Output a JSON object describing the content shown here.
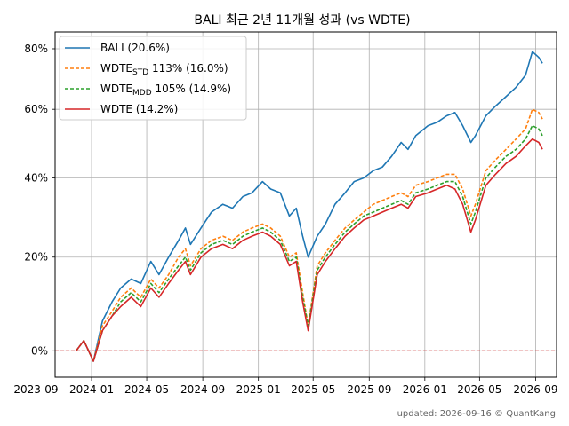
{
  "chart_data": {
    "type": "line",
    "title": "BALI 최근 2년 11개월 성과 (vs WDTE)",
    "footer": "updated: 2026-09-16 © QuantKang",
    "y_scale": "log(1+r)",
    "ylim": [
      -0.05,
      0.86
    ],
    "xlim": [
      "2023-10-13",
      "2026-10-17"
    ],
    "grid": true,
    "legend_position": "top-left",
    "baseline": {
      "value": 0,
      "color": "#d62728",
      "style": "dashed"
    },
    "x_ticks": [
      "2023-09",
      "2024-01",
      "2024-05",
      "2024-09",
      "2025-01",
      "2025-05",
      "2025-09",
      "2026-01",
      "2026-05",
      "2026-09"
    ],
    "y_ticks": [
      {
        "value": 0,
        "label": "0%"
      },
      {
        "value": 0.2,
        "label": "20%"
      },
      {
        "value": 0.4,
        "label": "40%"
      },
      {
        "value": 0.6,
        "label": "60%"
      },
      {
        "value": 0.8,
        "label": "80%"
      }
    ],
    "series": [
      {
        "name": "BALI (20.6%)",
        "label_main": "BALI (20.6%)",
        "label_sub": "",
        "label_rest": "",
        "color": "#1f77b4",
        "dash": "",
        "x": [
          "2023-11-28",
          "2023-12-15",
          "2024-01-05",
          "2024-01-25",
          "2024-02-15",
          "2024-03-05",
          "2024-03-28",
          "2024-04-18",
          "2024-05-10",
          "2024-05-28",
          "2024-06-18",
          "2024-07-10",
          "2024-07-25",
          "2024-08-05",
          "2024-08-28",
          "2024-09-20",
          "2024-10-15",
          "2024-11-05",
          "2024-11-28",
          "2024-12-18",
          "2025-01-10",
          "2025-01-28",
          "2025-02-18",
          "2025-03-10",
          "2025-03-25",
          "2025-04-08",
          "2025-04-20",
          "2025-05-10",
          "2025-05-28",
          "2025-06-18",
          "2025-07-10",
          "2025-07-30",
          "2025-08-20",
          "2025-09-10",
          "2025-09-30",
          "2025-10-20",
          "2025-11-10",
          "2025-11-25",
          "2025-12-12",
          "2026-01-08",
          "2026-01-28",
          "2026-02-18",
          "2026-03-08",
          "2026-03-25",
          "2026-04-12",
          "2026-04-22",
          "2026-05-15",
          "2026-06-05",
          "2026-06-28",
          "2026-07-20",
          "2026-08-10",
          "2026-08-25",
          "2026-09-08",
          "2026-09-16"
        ],
        "y": [
          0,
          0.02,
          -0.02,
          0.06,
          0.1,
          0.13,
          0.15,
          0.14,
          0.19,
          0.16,
          0.2,
          0.24,
          0.27,
          0.23,
          0.27,
          0.31,
          0.33,
          0.32,
          0.35,
          0.36,
          0.39,
          0.37,
          0.36,
          0.3,
          0.32,
          0.25,
          0.2,
          0.25,
          0.28,
          0.33,
          0.36,
          0.39,
          0.4,
          0.42,
          0.43,
          0.46,
          0.5,
          0.48,
          0.52,
          0.55,
          0.56,
          0.58,
          0.59,
          0.55,
          0.5,
          0.52,
          0.58,
          0.61,
          0.64,
          0.67,
          0.71,
          0.79,
          0.77,
          0.75
        ]
      },
      {
        "name": "WDTE_STD 113% (16.0%)",
        "label_main": "WDTE",
        "label_sub": "STD",
        "label_rest": " 113% (16.0%)",
        "color": "#ff7f0e",
        "dash": "4,2",
        "x": [
          "2023-11-28",
          "2023-12-15",
          "2024-01-05",
          "2024-01-25",
          "2024-02-15",
          "2024-03-05",
          "2024-03-28",
          "2024-04-18",
          "2024-05-10",
          "2024-05-28",
          "2024-06-18",
          "2024-07-10",
          "2024-07-25",
          "2024-08-05",
          "2024-08-28",
          "2024-09-20",
          "2024-10-15",
          "2024-11-05",
          "2024-11-28",
          "2024-12-18",
          "2025-01-10",
          "2025-01-28",
          "2025-02-18",
          "2025-03-10",
          "2025-03-25",
          "2025-04-08",
          "2025-04-20",
          "2025-05-10",
          "2025-05-28",
          "2025-06-18",
          "2025-07-10",
          "2025-07-30",
          "2025-08-20",
          "2025-09-10",
          "2025-09-30",
          "2025-10-20",
          "2025-11-10",
          "2025-11-25",
          "2025-12-12",
          "2026-01-08",
          "2026-01-28",
          "2026-02-18",
          "2026-03-08",
          "2026-03-25",
          "2026-04-12",
          "2026-04-22",
          "2026-05-15",
          "2026-06-05",
          "2026-06-28",
          "2026-07-20",
          "2026-08-10",
          "2026-08-25",
          "2026-09-08",
          "2026-09-16"
        ],
        "y": [
          0,
          0.02,
          -0.02,
          0.05,
          0.08,
          0.11,
          0.13,
          0.11,
          0.15,
          0.13,
          0.16,
          0.2,
          0.22,
          0.18,
          0.22,
          0.24,
          0.25,
          0.24,
          0.26,
          0.27,
          0.28,
          0.27,
          0.25,
          0.2,
          0.21,
          0.12,
          0.05,
          0.18,
          0.21,
          0.24,
          0.27,
          0.29,
          0.31,
          0.33,
          0.34,
          0.35,
          0.36,
          0.35,
          0.38,
          0.39,
          0.4,
          0.41,
          0.41,
          0.37,
          0.3,
          0.33,
          0.42,
          0.45,
          0.48,
          0.51,
          0.54,
          0.6,
          0.59,
          0.57
        ]
      },
      {
        "name": "WDTE_MDD 105% (14.9%)",
        "label_main": "WDTE",
        "label_sub": "MDD",
        "label_rest": " 105% (14.9%)",
        "color": "#2ca02c",
        "dash": "4,2",
        "x": [
          "2023-11-28",
          "2023-12-15",
          "2024-01-05",
          "2024-01-25",
          "2024-02-15",
          "2024-03-05",
          "2024-03-28",
          "2024-04-18",
          "2024-05-10",
          "2024-05-28",
          "2024-06-18",
          "2024-07-10",
          "2024-07-25",
          "2024-08-05",
          "2024-08-28",
          "2024-09-20",
          "2024-10-15",
          "2024-11-05",
          "2024-11-28",
          "2024-12-18",
          "2025-01-10",
          "2025-01-28",
          "2025-02-18",
          "2025-03-10",
          "2025-03-25",
          "2025-04-08",
          "2025-04-20",
          "2025-05-10",
          "2025-05-28",
          "2025-06-18",
          "2025-07-10",
          "2025-07-30",
          "2025-08-20",
          "2025-09-10",
          "2025-09-30",
          "2025-10-20",
          "2025-11-10",
          "2025-11-25",
          "2025-12-12",
          "2026-01-08",
          "2026-01-28",
          "2026-02-18",
          "2026-03-08",
          "2026-03-25",
          "2026-04-12",
          "2026-04-22",
          "2026-05-15",
          "2026-06-05",
          "2026-06-28",
          "2026-07-20",
          "2026-08-10",
          "2026-08-25",
          "2026-09-08",
          "2026-09-16"
        ],
        "y": [
          0,
          0.02,
          -0.02,
          0.04,
          0.07,
          0.1,
          0.12,
          0.1,
          0.14,
          0.12,
          0.15,
          0.18,
          0.2,
          0.17,
          0.21,
          0.23,
          0.24,
          0.23,
          0.25,
          0.26,
          0.27,
          0.26,
          0.24,
          0.19,
          0.2,
          0.11,
          0.05,
          0.17,
          0.2,
          0.23,
          0.26,
          0.28,
          0.3,
          0.31,
          0.32,
          0.33,
          0.34,
          0.33,
          0.36,
          0.37,
          0.38,
          0.39,
          0.39,
          0.35,
          0.28,
          0.31,
          0.4,
          0.43,
          0.46,
          0.48,
          0.51,
          0.55,
          0.54,
          0.52
        ]
      },
      {
        "name": "WDTE (14.2%)",
        "label_main": "WDTE (14.2%)",
        "label_sub": "",
        "label_rest": "",
        "color": "#d62728",
        "dash": "",
        "x": [
          "2023-11-28",
          "2023-12-15",
          "2024-01-05",
          "2024-01-25",
          "2024-02-15",
          "2024-03-05",
          "2024-03-28",
          "2024-04-18",
          "2024-05-10",
          "2024-05-28",
          "2024-06-18",
          "2024-07-10",
          "2024-07-25",
          "2024-08-05",
          "2024-08-28",
          "2024-09-20",
          "2024-10-15",
          "2024-11-05",
          "2024-11-28",
          "2024-12-18",
          "2025-01-10",
          "2025-01-28",
          "2025-02-18",
          "2025-03-10",
          "2025-03-25",
          "2025-04-08",
          "2025-04-20",
          "2025-05-10",
          "2025-05-28",
          "2025-06-18",
          "2025-07-10",
          "2025-07-30",
          "2025-08-20",
          "2025-09-10",
          "2025-09-30",
          "2025-10-20",
          "2025-11-10",
          "2025-11-25",
          "2025-12-12",
          "2026-01-08",
          "2026-01-28",
          "2026-02-18",
          "2026-03-08",
          "2026-03-25",
          "2026-04-12",
          "2026-04-22",
          "2026-05-15",
          "2026-06-05",
          "2026-06-28",
          "2026-07-20",
          "2026-08-10",
          "2026-08-25",
          "2026-09-08",
          "2026-09-16"
        ],
        "y": [
          0,
          0.02,
          -0.02,
          0.04,
          0.07,
          0.09,
          0.11,
          0.09,
          0.13,
          0.11,
          0.14,
          0.17,
          0.19,
          0.16,
          0.2,
          0.22,
          0.23,
          0.22,
          0.24,
          0.25,
          0.26,
          0.25,
          0.23,
          0.18,
          0.19,
          0.1,
          0.04,
          0.16,
          0.19,
          0.22,
          0.25,
          0.27,
          0.29,
          0.3,
          0.31,
          0.32,
          0.33,
          0.32,
          0.35,
          0.36,
          0.37,
          0.38,
          0.37,
          0.33,
          0.26,
          0.29,
          0.38,
          0.41,
          0.44,
          0.46,
          0.49,
          0.51,
          0.5,
          0.48
        ]
      }
    ]
  }
}
